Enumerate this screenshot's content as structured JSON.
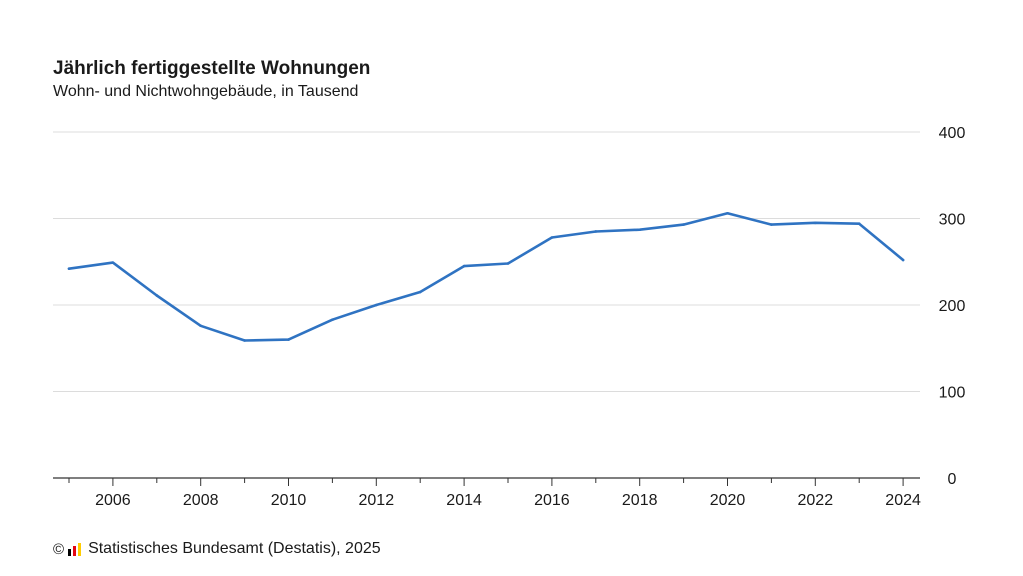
{
  "chart_data": {
    "type": "line",
    "title": "Jährlich fertiggestellte Wohnungen",
    "subtitle": "Wohn- und Nichtwohngebäude, in Tausend",
    "x": [
      2005,
      2006,
      2007,
      2008,
      2009,
      2010,
      2011,
      2012,
      2013,
      2014,
      2015,
      2016,
      2017,
      2018,
      2019,
      2020,
      2021,
      2022,
      2023,
      2024
    ],
    "series": [
      {
        "values": [
          242,
          249,
          211,
          176,
          159,
          160,
          183,
          200,
          215,
          245,
          248,
          278,
          285,
          287,
          293,
          306,
          293,
          295,
          294,
          252
        ]
      }
    ],
    "x_ticks": [
      "2006",
      "2008",
      "2010",
      "2012",
      "2014",
      "2016",
      "2018",
      "2020",
      "2022",
      "2024"
    ],
    "y_ticks": [
      "0",
      "100",
      "200",
      "300",
      "400"
    ],
    "ylim": [
      0,
      400
    ],
    "xlabel": "",
    "ylabel": "",
    "grid": true,
    "y_axis_side": "right",
    "line_color": "#2f73c2"
  },
  "footer": {
    "copyright": "©",
    "source": "Statistisches Bundesamt (Destatis), 2025",
    "logo_colors": [
      "#000000",
      "#e30613",
      "#ffcc00"
    ]
  }
}
